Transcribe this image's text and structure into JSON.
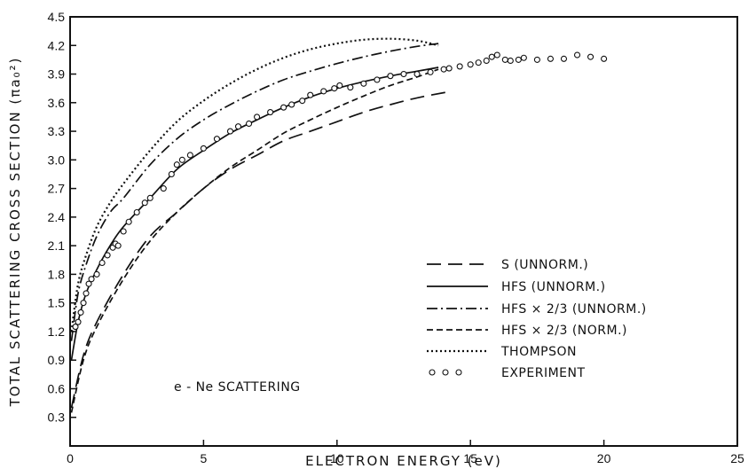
{
  "chart_data": {
    "type": "line",
    "title": "",
    "xlabel": "ELECTRON ENERGY (eV)",
    "ylabel": "TOTAL SCATTERING CROSS SECTION (πa₀²)",
    "xlim": [
      0,
      25
    ],
    "ylim": [
      0,
      4.5
    ],
    "x_ticks": [
      0,
      5,
      10,
      15,
      20,
      25
    ],
    "y_ticks": [
      0.3,
      0.6,
      0.9,
      1.2,
      1.5,
      1.8,
      2.1,
      2.4,
      2.7,
      3.0,
      3.3,
      3.6,
      3.9,
      4.2,
      4.5
    ],
    "x_tick_labels": [
      "0",
      "5",
      "10",
      "15",
      "20",
      "25"
    ],
    "y_tick_labels": [
      "0.3",
      "0.6",
      "0.9",
      "1.2",
      "1.5",
      "1.8",
      "2.1",
      "2.4",
      "2.7",
      "3.0",
      "3.3",
      "3.6",
      "3.9",
      "4.2",
      "4.5"
    ],
    "annotation": "e - Ne SCATTERING",
    "legend_position": "bottom-right",
    "series": [
      {
        "name": "S (UNNORM.)",
        "style": "long-dash",
        "x": [
          0.05,
          0.5,
          1,
          2,
          3,
          4,
          5,
          6,
          7,
          8,
          9,
          10,
          11,
          12,
          13,
          14.3
        ],
        "y": [
          0.4,
          0.95,
          1.3,
          1.8,
          2.2,
          2.45,
          2.7,
          2.9,
          3.05,
          3.2,
          3.3,
          3.4,
          3.5,
          3.58,
          3.65,
          3.72
        ]
      },
      {
        "name": "HFS (UNNORM.)",
        "style": "solid",
        "x": [
          0.05,
          0.3,
          0.6,
          1,
          1.5,
          2,
          3,
          4,
          5,
          6,
          7,
          8,
          9,
          10,
          11,
          12,
          13,
          13.8
        ],
        "y": [
          0.9,
          1.3,
          1.6,
          1.85,
          2.1,
          2.3,
          2.6,
          2.9,
          3.1,
          3.28,
          3.42,
          3.55,
          3.66,
          3.75,
          3.82,
          3.88,
          3.93,
          3.97
        ]
      },
      {
        "name": "HFS × 2/3 (UNNORM.)",
        "style": "dash-dot",
        "x": [
          0.05,
          0.3,
          0.6,
          1,
          1.5,
          2,
          3,
          4,
          5,
          6,
          7,
          8,
          9,
          10,
          11,
          12,
          13,
          13.8
        ],
        "y": [
          1.1,
          1.6,
          1.9,
          2.2,
          2.45,
          2.6,
          2.95,
          3.22,
          3.42,
          3.58,
          3.72,
          3.84,
          3.93,
          4.01,
          4.08,
          4.14,
          4.19,
          4.22
        ]
      },
      {
        "name": "HFS × 2/3 (NORM.)",
        "style": "dashed",
        "x": [
          0.05,
          0.5,
          1,
          2,
          3,
          4,
          5,
          6,
          7,
          8,
          9,
          10,
          11,
          12,
          13,
          13.8
        ],
        "y": [
          0.35,
          0.9,
          1.25,
          1.75,
          2.15,
          2.45,
          2.7,
          2.92,
          3.1,
          3.28,
          3.42,
          3.55,
          3.67,
          3.78,
          3.87,
          3.95
        ]
      },
      {
        "name": "THOMPSON",
        "style": "dotted",
        "x": [
          0.05,
          0.3,
          0.6,
          1,
          1.5,
          2,
          3,
          4,
          5,
          6,
          7,
          8,
          9,
          10,
          11,
          12,
          13,
          13.8
        ],
        "y": [
          1.2,
          1.7,
          2.0,
          2.3,
          2.55,
          2.75,
          3.1,
          3.4,
          3.62,
          3.8,
          3.95,
          4.07,
          4.16,
          4.22,
          4.26,
          4.27,
          4.25,
          4.2
        ]
      },
      {
        "name": "EXPERIMENT",
        "style": "markers",
        "x": [
          0.2,
          0.3,
          0.4,
          0.5,
          0.6,
          0.7,
          0.8,
          1.0,
          1.2,
          1.4,
          1.6,
          1.7,
          1.8,
          2.0,
          2.2,
          2.5,
          2.8,
          3.0,
          3.5,
          3.8,
          4.0,
          4.2,
          4.5,
          5.0,
          5.5,
          6.0,
          6.3,
          6.7,
          7.0,
          7.5,
          8.0,
          8.3,
          8.7,
          9.0,
          9.5,
          9.9,
          10.1,
          10.5,
          11.0,
          11.5,
          12.0,
          12.5,
          13.0,
          13.5,
          14.0,
          14.2,
          14.6,
          15.0,
          15.3,
          15.6,
          15.8,
          16.0,
          16.3,
          16.5,
          16.8,
          17.0,
          17.5,
          18.0,
          18.5,
          19.0,
          19.5,
          20.0
        ],
        "y": [
          1.25,
          1.3,
          1.4,
          1.5,
          1.6,
          1.7,
          1.75,
          1.8,
          1.92,
          2.0,
          2.08,
          2.12,
          2.1,
          2.25,
          2.35,
          2.45,
          2.55,
          2.6,
          2.7,
          2.85,
          2.95,
          3.0,
          3.05,
          3.12,
          3.22,
          3.3,
          3.35,
          3.38,
          3.45,
          3.5,
          3.55,
          3.58,
          3.62,
          3.68,
          3.72,
          3.75,
          3.78,
          3.76,
          3.8,
          3.84,
          3.88,
          3.9,
          3.9,
          3.92,
          3.95,
          3.96,
          3.98,
          4.0,
          4.02,
          4.04,
          4.08,
          4.1,
          4.05,
          4.04,
          4.05,
          4.07,
          4.05,
          4.06,
          4.06,
          4.1,
          4.08,
          4.06
        ]
      }
    ]
  }
}
